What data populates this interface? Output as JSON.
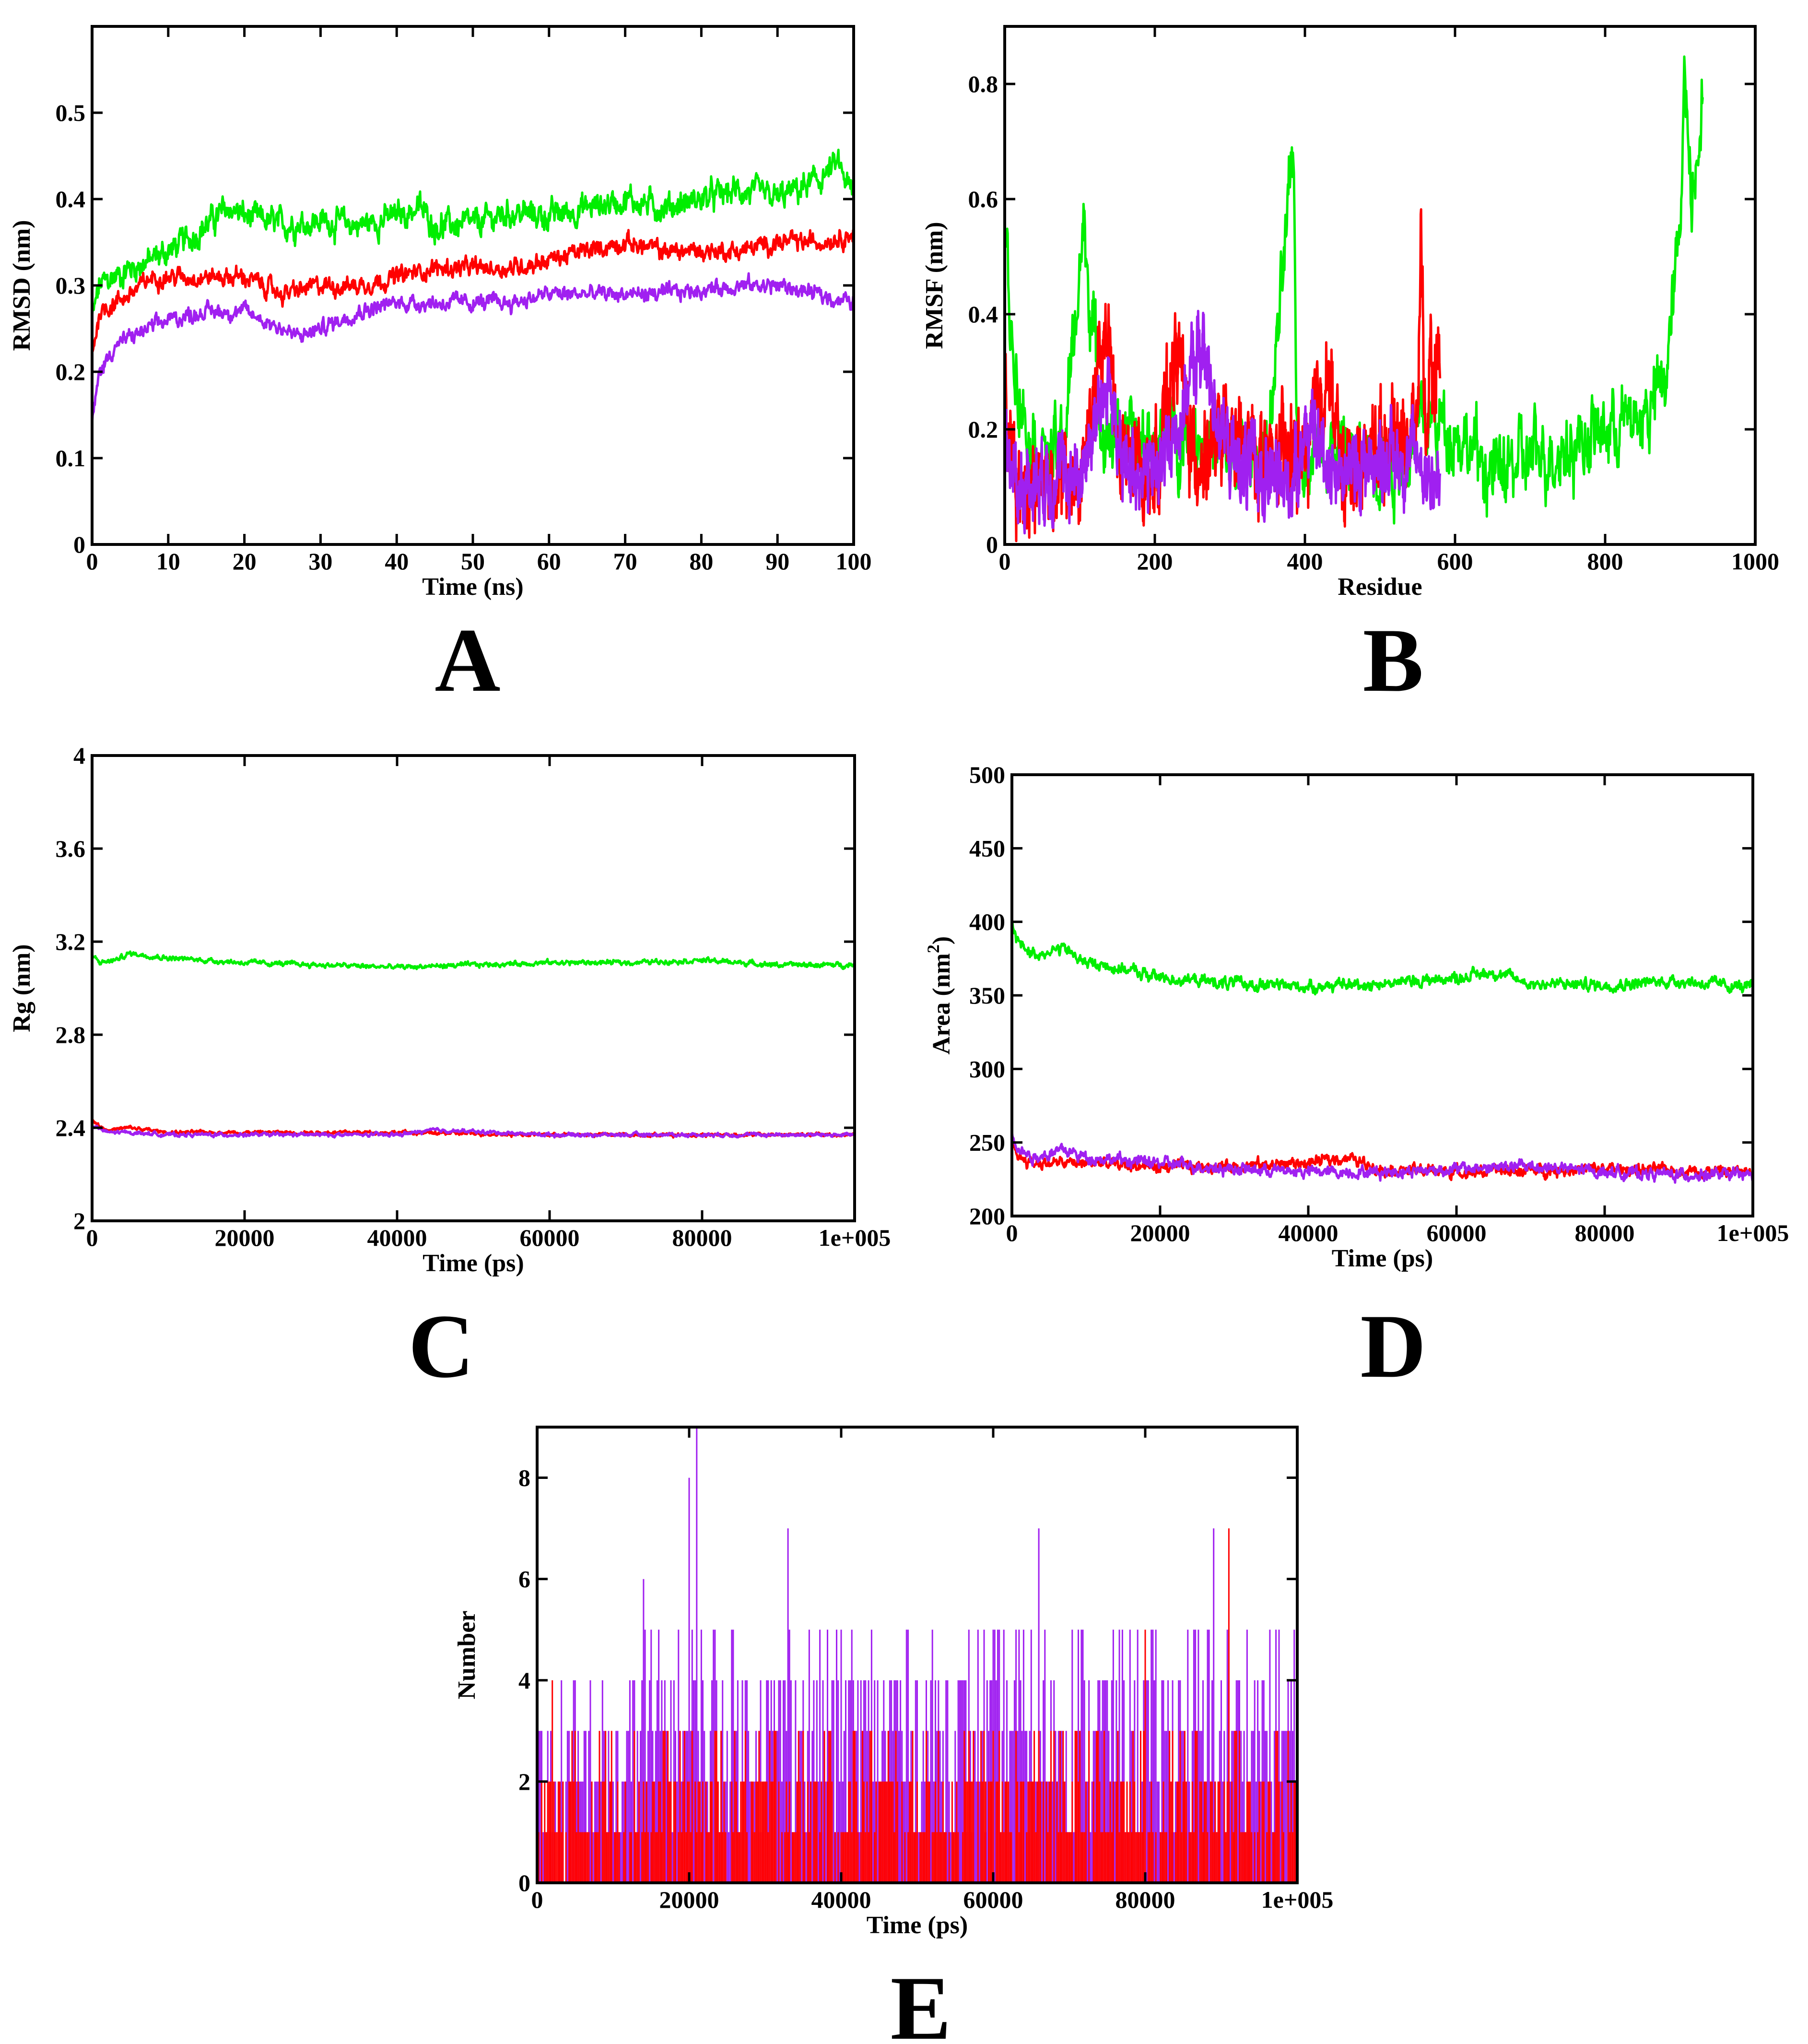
{
  "colors": {
    "green": "#00ee00",
    "red": "#ff0000",
    "purple": "#a020f0"
  },
  "chart_data": [
    {
      "id": "A",
      "panel_label": "A",
      "type": "line",
      "xlabel": "Time (ns)",
      "ylabel": "RMSD (nm)",
      "xlim": [
        0,
        100
      ],
      "ylim": [
        0,
        0.6
      ],
      "xticks": [
        0,
        10,
        20,
        30,
        40,
        50,
        60,
        70,
        80,
        90,
        100
      ],
      "xtick_labels": [
        "0",
        "10",
        "20",
        "30",
        "40",
        "50",
        "60",
        "70",
        "80",
        "90",
        "100"
      ],
      "yticks": [
        0,
        0.1,
        0.2,
        0.3,
        0.4,
        0.5
      ],
      "ytick_labels": [
        "0",
        "0.1",
        "0.2",
        "0.3",
        "0.4",
        "0.5"
      ],
      "series": [
        {
          "name": "green",
          "color": "#00ee00",
          "noise": 0.012,
          "x": [
            0,
            1,
            3,
            5,
            8,
            12,
            15,
            18,
            20,
            25,
            30,
            35,
            40,
            43,
            45,
            50,
            55,
            60,
            65,
            70,
            75,
            80,
            85,
            90,
            95,
            98,
            100
          ],
          "y": [
            0.26,
            0.3,
            0.31,
            0.32,
            0.33,
            0.35,
            0.37,
            0.39,
            0.38,
            0.37,
            0.375,
            0.37,
            0.38,
            0.39,
            0.37,
            0.37,
            0.385,
            0.38,
            0.39,
            0.4,
            0.39,
            0.4,
            0.41,
            0.4,
            0.42,
            0.44,
            0.4
          ]
        },
        {
          "name": "red",
          "color": "#ff0000",
          "noise": 0.008,
          "x": [
            0,
            1,
            3,
            5,
            8,
            10,
            15,
            20,
            25,
            30,
            35,
            40,
            45,
            50,
            55,
            60,
            65,
            70,
            75,
            80,
            85,
            90,
            95,
            100
          ],
          "y": [
            0.22,
            0.27,
            0.28,
            0.29,
            0.31,
            0.31,
            0.31,
            0.31,
            0.29,
            0.3,
            0.3,
            0.31,
            0.32,
            0.32,
            0.32,
            0.33,
            0.34,
            0.35,
            0.34,
            0.34,
            0.34,
            0.35,
            0.35,
            0.36
          ]
        },
        {
          "name": "purple",
          "color": "#a020f0",
          "noise": 0.007,
          "x": [
            0,
            1,
            3,
            5,
            10,
            15,
            20,
            25,
            27,
            30,
            35,
            40,
            45,
            50,
            55,
            60,
            65,
            70,
            75,
            80,
            85,
            90,
            95,
            100
          ],
          "y": [
            0.14,
            0.2,
            0.23,
            0.24,
            0.26,
            0.27,
            0.27,
            0.25,
            0.24,
            0.25,
            0.27,
            0.28,
            0.28,
            0.28,
            0.28,
            0.29,
            0.29,
            0.29,
            0.29,
            0.295,
            0.3,
            0.3,
            0.29,
            0.28
          ]
        }
      ]
    },
    {
      "id": "B",
      "panel_label": "B",
      "type": "line",
      "xlabel": "Residue",
      "ylabel": "RMSF (nm)",
      "xlim": [
        0,
        1000
      ],
      "ylim": [
        0,
        0.9
      ],
      "xticks": [
        0,
        200,
        400,
        600,
        800,
        1000
      ],
      "xtick_labels": [
        "0",
        "200",
        "400",
        "600",
        "800",
        "1000"
      ],
      "yticks": [
        0,
        0.2,
        0.4,
        0.6,
        0.8
      ],
      "ytick_labels": [
        "0",
        "0.2",
        "0.4",
        "0.6",
        "0.8"
      ],
      "series": [
        {
          "name": "green",
          "color": "#00ee00",
          "noise": 0.05,
          "x": [
            0,
            10,
            30,
            60,
            80,
            105,
            130,
            160,
            200,
            250,
            300,
            350,
            385,
            390,
            420,
            470,
            520,
            560,
            600,
            650,
            700,
            750,
            800,
            850,
            880,
            900,
            905,
            915,
            930
          ],
          "y": [
            0.55,
            0.35,
            0.2,
            0.15,
            0.18,
            0.55,
            0.2,
            0.18,
            0.17,
            0.2,
            0.15,
            0.15,
            0.68,
            0.15,
            0.18,
            0.15,
            0.14,
            0.22,
            0.2,
            0.12,
            0.15,
            0.17,
            0.2,
            0.22,
            0.28,
            0.55,
            0.85,
            0.6,
            0.8
          ]
        },
        {
          "name": "red",
          "color": "#ff0000",
          "noise": 0.06,
          "x": [
            0,
            10,
            20,
            50,
            100,
            140,
            150,
            200,
            230,
            250,
            300,
            350,
            400,
            430,
            450,
            500,
            550,
            555,
            560,
            580
          ],
          "y": [
            0.25,
            0.15,
            0.1,
            0.12,
            0.1,
            0.4,
            0.15,
            0.12,
            0.35,
            0.15,
            0.18,
            0.15,
            0.15,
            0.3,
            0.12,
            0.18,
            0.2,
            0.57,
            0.2,
            0.35
          ]
        },
        {
          "name": "purple",
          "color": "#a020f0",
          "noise": 0.05,
          "x": [
            0,
            10,
            20,
            50,
            100,
            140,
            150,
            200,
            230,
            260,
            300,
            350,
            380,
            400,
            450,
            500,
            550,
            580
          ],
          "y": [
            0.2,
            0.12,
            0.1,
            0.12,
            0.12,
            0.3,
            0.15,
            0.12,
            0.2,
            0.35,
            0.15,
            0.12,
            0.1,
            0.2,
            0.12,
            0.15,
            0.15,
            0.1
          ]
        }
      ]
    },
    {
      "id": "C",
      "panel_label": "C",
      "type": "line",
      "xlabel": "Time (ps)",
      "ylabel": "Rg (nm)",
      "xlim": [
        0,
        100000
      ],
      "ylim": [
        2,
        4
      ],
      "xticks": [
        0,
        20000,
        40000,
        60000,
        80000,
        100000
      ],
      "xtick_labels": [
        "0",
        "20000",
        "40000",
        "60000",
        "80000",
        "1e+005"
      ],
      "yticks": [
        2,
        2.4,
        2.8,
        3.2,
        3.6,
        4
      ],
      "ytick_labels": [
        "2",
        "2.4",
        "2.8",
        "3.2",
        "3.6",
        "4"
      ],
      "series": [
        {
          "name": "green",
          "color": "#00ee00",
          "noise": 0.008,
          "x": [
            0,
            1000,
            3000,
            5000,
            10000,
            20000,
            30000,
            40000,
            50000,
            60000,
            70000,
            80000,
            90000,
            100000
          ],
          "y": [
            3.14,
            3.11,
            3.12,
            3.15,
            3.13,
            3.11,
            3.1,
            3.09,
            3.1,
            3.11,
            3.11,
            3.12,
            3.1,
            3.1
          ]
        },
        {
          "name": "red",
          "color": "#ff0000",
          "noise": 0.006,
          "x": [
            0,
            2000,
            5000,
            10000,
            20000,
            40000,
            60000,
            80000,
            100000
          ],
          "y": [
            2.43,
            2.39,
            2.4,
            2.38,
            2.38,
            2.38,
            2.37,
            2.37,
            2.37
          ]
        },
        {
          "name": "purple",
          "color": "#a020f0",
          "noise": 0.006,
          "x": [
            0,
            2000,
            5000,
            10000,
            20000,
            40000,
            45000,
            60000,
            80000,
            100000
          ],
          "y": [
            2.41,
            2.38,
            2.38,
            2.37,
            2.37,
            2.37,
            2.39,
            2.37,
            2.37,
            2.37
          ]
        }
      ]
    },
    {
      "id": "D",
      "panel_label": "D",
      "type": "line",
      "xlabel": "Time (ps)",
      "ylabel": "Area (nm",
      "ylabel_sup": "2",
      "ylabel_end": ")",
      "xlim": [
        0,
        100000
      ],
      "ylim": [
        200,
        500
      ],
      "xticks": [
        0,
        20000,
        40000,
        60000,
        80000,
        100000
      ],
      "xtick_labels": [
        "0",
        "20000",
        "40000",
        "60000",
        "80000",
        "1e+005"
      ],
      "yticks": [
        200,
        250,
        300,
        350,
        400,
        450,
        500
      ],
      "ytick_labels": [
        "200",
        "250",
        "300",
        "350",
        "400",
        "450",
        "500"
      ],
      "series": [
        {
          "name": "green",
          "color": "#00ee00",
          "noise": 3,
          "x": [
            0,
            1000,
            3000,
            7000,
            10000,
            15000,
            20000,
            30000,
            40000,
            50000,
            60000,
            65000,
            70000,
            80000,
            90000,
            100000
          ],
          "y": [
            398,
            385,
            378,
            382,
            372,
            368,
            362,
            358,
            356,
            358,
            362,
            366,
            358,
            357,
            360,
            355
          ]
        },
        {
          "name": "red",
          "color": "#ff0000",
          "noise": 3,
          "x": [
            0,
            1000,
            3000,
            10000,
            20000,
            30000,
            40000,
            45000,
            50000,
            60000,
            80000,
            100000
          ],
          "y": [
            250,
            240,
            236,
            236,
            233,
            234,
            236,
            240,
            232,
            230,
            232,
            230
          ]
        },
        {
          "name": "purple",
          "color": "#a020f0",
          "noise": 3,
          "x": [
            0,
            1000,
            3000,
            7000,
            10000,
            20000,
            30000,
            40000,
            50000,
            60000,
            70000,
            80000,
            90000,
            100000
          ],
          "y": [
            258,
            245,
            240,
            245,
            240,
            236,
            232,
            230,
            230,
            232,
            234,
            230,
            228,
            228
          ]
        }
      ]
    },
    {
      "id": "E",
      "panel_label": "E",
      "type": "bar",
      "style": "step-bars",
      "xlabel": "Time (ps)",
      "ylabel": "Number",
      "xlim": [
        0,
        100000
      ],
      "ylim": [
        0,
        9
      ],
      "xticks": [
        0,
        20000,
        40000,
        60000,
        80000,
        100000
      ],
      "xtick_labels": [
        "0",
        "20000",
        "40000",
        "60000",
        "80000",
        "1e+005"
      ],
      "yticks": [
        0,
        2,
        4,
        6,
        8
      ],
      "ytick_labels": [
        "0",
        "2",
        "4",
        "6",
        "8"
      ],
      "series": [
        {
          "name": "purple",
          "color": "#a020f0",
          "sample_every_ps": 200,
          "typical_range_x": [
            0,
            12000,
            14000,
            100000
          ],
          "typical_low": [
            0,
            0,
            1,
            1
          ],
          "typical_high": [
            4,
            4,
            5,
            5
          ],
          "peaks": [
            {
              "x": 20000,
              "y": 8
            },
            {
              "x": 21000,
              "y": 9
            },
            {
              "x": 14000,
              "y": 6
            },
            {
              "x": 33000,
              "y": 7
            },
            {
              "x": 66000,
              "y": 7
            },
            {
              "x": 89000,
              "y": 7
            }
          ]
        },
        {
          "name": "red",
          "color": "#ff0000",
          "sample_every_ps": 200,
          "typical_range_x": [
            0,
            100000
          ],
          "typical_low": [
            0,
            0
          ],
          "typical_high": [
            3,
            3
          ],
          "peaks": [
            {
              "x": 2000,
              "y": 4
            },
            {
              "x": 80000,
              "y": 5
            },
            {
              "x": 91000,
              "y": 7
            }
          ]
        }
      ]
    }
  ]
}
